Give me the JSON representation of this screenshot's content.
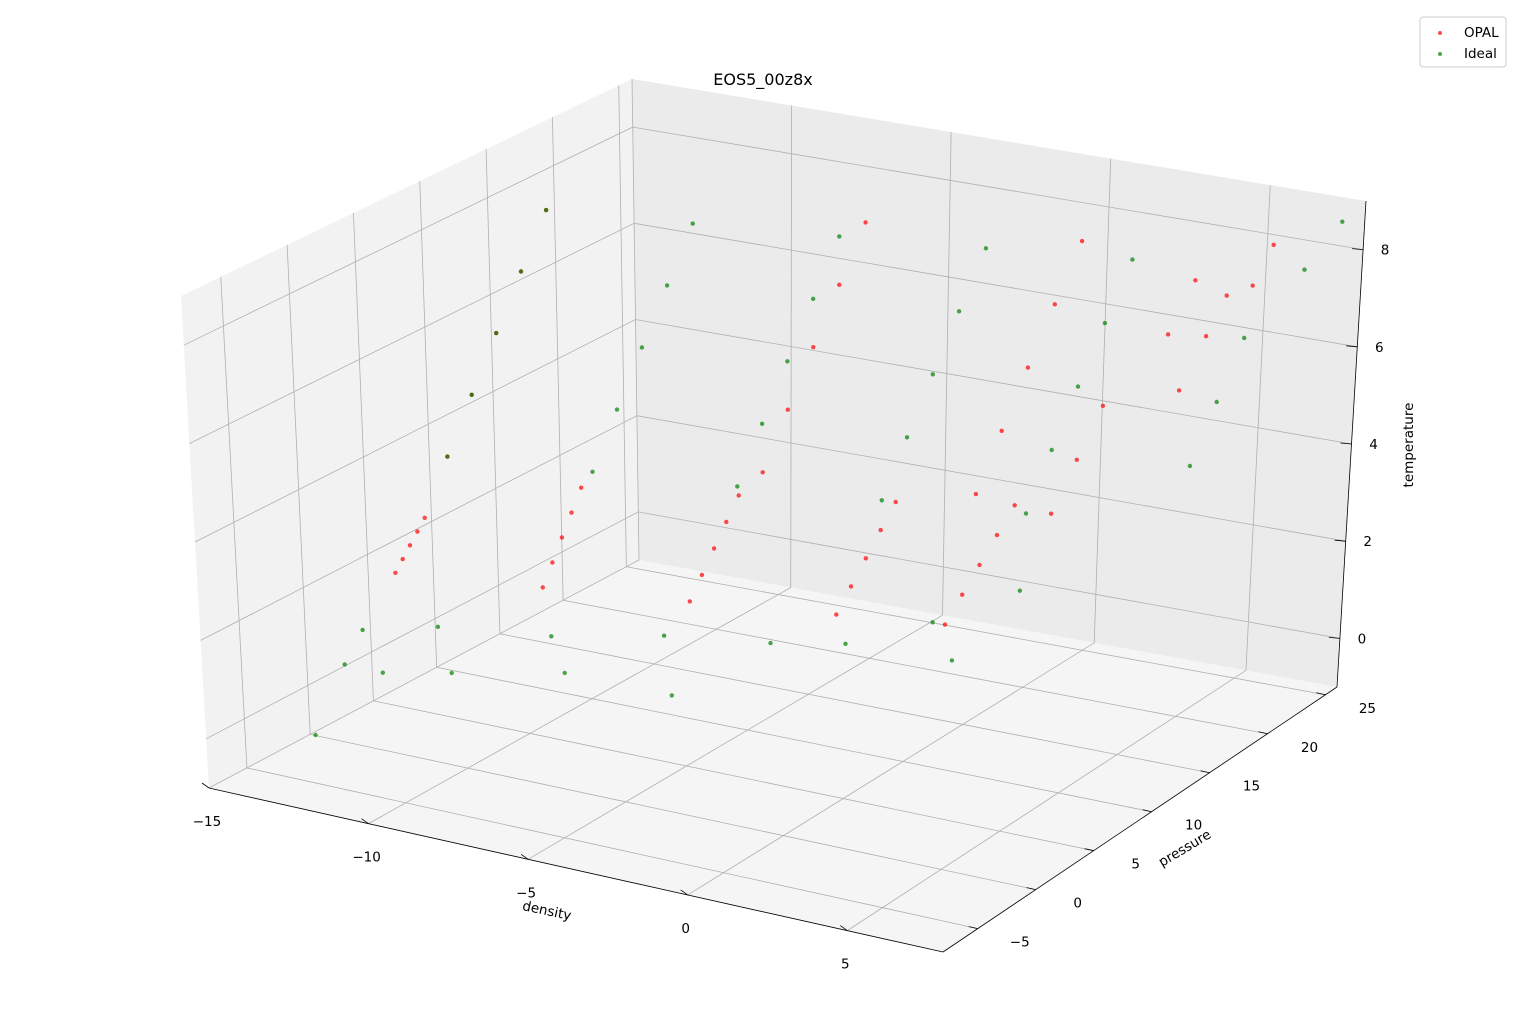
{
  "chart_data": {
    "type": "scatter",
    "projection": "3d",
    "title": "EOS5_00z8x",
    "xlabel": "density",
    "ylabel": "pressure",
    "zlabel": "temperature",
    "xlim": [
      -15,
      8
    ],
    "ylim": [
      -8,
      26
    ],
    "zlim": [
      -1,
      9
    ],
    "x_ticks": [
      -15,
      -10,
      -5,
      0,
      5
    ],
    "y_ticks": [
      -5,
      0,
      5,
      10,
      15,
      20,
      25
    ],
    "z_ticks": [
      0,
      2,
      4,
      6,
      8
    ],
    "grid": true,
    "legend_position": "upper-right",
    "colors": {
      "OPAL": "#ff0000",
      "Ideal": "#008000"
    },
    "series": [
      {
        "name": "OPAL",
        "marker": "dot",
        "color": "#ff0000",
        "note_grid": "samples of the logT x logR table surface",
        "points": [
          [
            -14,
            4.7,
            1.8
          ],
          [
            -14,
            5.3,
            2.0
          ],
          [
            -14,
            5.9,
            2.2
          ],
          [
            -14,
            6.5,
            2.4
          ],
          [
            -14,
            7.1,
            2.6
          ],
          [
            -10,
            6.4,
            1.8
          ],
          [
            -10,
            7.2,
            2.2
          ],
          [
            -10,
            8.0,
            2.6
          ],
          [
            -10,
            8.8,
            3.0
          ],
          [
            -10,
            9.6,
            3.4
          ],
          [
            -6,
            8.1,
            1.8
          ],
          [
            -6,
            9.1,
            2.2
          ],
          [
            -6,
            10.1,
            2.6
          ],
          [
            -6,
            11.1,
            3.0
          ],
          [
            -6,
            12.1,
            3.4
          ],
          [
            -2,
            9.8,
            1.8
          ],
          [
            -2,
            11.0,
            2.2
          ],
          [
            -2,
            12.2,
            2.6
          ],
          [
            -2,
            13.4,
            3.0
          ],
          [
            -2,
            14.6,
            3.4
          ],
          [
            1,
            11.0,
            1.8
          ],
          [
            1,
            12.4,
            2.2
          ],
          [
            1,
            13.8,
            2.6
          ],
          [
            1,
            15.2,
            3.0
          ],
          [
            1,
            16.6,
            3.4
          ],
          [
            3,
            14.5,
            3.8
          ],
          [
            3,
            16.5,
            4.6
          ],
          [
            3,
            18.5,
            5.4
          ],
          [
            4,
            21.0,
            6.6
          ],
          [
            4,
            23.0,
            7.4
          ],
          [
            5,
            19.5,
            5.8
          ],
          [
            5,
            21.5,
            6.6
          ],
          [
            5,
            23.0,
            7.2
          ],
          [
            6,
            22.5,
            7.6
          ],
          [
            6,
            24.0,
            8.2
          ],
          [
            -14,
            9.0,
            3.6
          ],
          [
            -14,
            11.0,
            4.6
          ],
          [
            -14,
            13.0,
            5.6
          ],
          [
            -14,
            15.0,
            6.6
          ],
          [
            -14,
            17.0,
            7.6
          ],
          [
            -6,
            14.0,
            3.6
          ],
          [
            -6,
            16.0,
            4.6
          ],
          [
            -6,
            18.0,
            5.6
          ],
          [
            -6,
            20.0,
            6.6
          ],
          [
            -6,
            22.0,
            7.6
          ],
          [
            0,
            16.0,
            3.6
          ],
          [
            0,
            18.0,
            4.6
          ],
          [
            0,
            20.0,
            5.6
          ],
          [
            0,
            22.0,
            6.6
          ],
          [
            0,
            24.0,
            7.6
          ]
        ]
      },
      {
        "name": "Ideal",
        "marker": "dot",
        "color": "#008000",
        "note_grid": "samples of the ideal-gas surface including low-temperature scattered points",
        "points": [
          [
            -14,
            9.0,
            3.6
          ],
          [
            -14,
            11.0,
            4.6
          ],
          [
            -14,
            13.0,
            5.6
          ],
          [
            -14,
            15.0,
            6.6
          ],
          [
            -14,
            17.0,
            7.6
          ],
          [
            -10,
            10.5,
            3.6
          ],
          [
            -10,
            12.5,
            4.6
          ],
          [
            -10,
            14.5,
            5.6
          ],
          [
            -10,
            16.5,
            6.6
          ],
          [
            -10,
            18.5,
            7.6
          ],
          [
            -6,
            12.0,
            3.6
          ],
          [
            -6,
            14.0,
            4.6
          ],
          [
            -6,
            16.0,
            5.6
          ],
          [
            -6,
            18.0,
            6.6
          ],
          [
            -6,
            20.0,
            7.6
          ],
          [
            -2,
            13.5,
            3.6
          ],
          [
            -2,
            15.5,
            4.6
          ],
          [
            -2,
            17.5,
            5.6
          ],
          [
            -2,
            19.5,
            6.6
          ],
          [
            -2,
            21.5,
            7.6
          ],
          [
            2,
            15.0,
            3.6
          ],
          [
            2,
            17.0,
            4.6
          ],
          [
            2,
            19.0,
            5.6
          ],
          [
            2,
            21.0,
            6.6
          ],
          [
            2,
            23.0,
            7.6
          ],
          [
            6,
            18.0,
            4.6
          ],
          [
            6,
            20.0,
            5.6
          ],
          [
            6,
            22.0,
            6.6
          ],
          [
            7,
            24.0,
            7.8
          ],
          [
            7.5,
            25.5,
            8.6
          ],
          [
            -14,
            2.0,
            1.0
          ],
          [
            -14,
            0.5,
            0.5
          ],
          [
            -14,
            -2.0,
            -0.6
          ],
          [
            -13,
            1.0,
            0.4
          ],
          [
            -12,
            3.0,
            1.2
          ],
          [
            -11,
            1.5,
            0.6
          ],
          [
            -9,
            4.5,
            1.2
          ],
          [
            -8,
            3.0,
            0.8
          ],
          [
            -6,
            6.0,
            1.4
          ],
          [
            -5,
            4.0,
            0.6
          ],
          [
            -3,
            7.0,
            1.5
          ],
          [
            -1,
            8.0,
            1.6
          ],
          [
            1,
            10.0,
            2.0
          ],
          [
            2,
            9.0,
            1.5
          ],
          [
            3,
            12.0,
            2.6
          ]
        ]
      }
    ]
  }
}
